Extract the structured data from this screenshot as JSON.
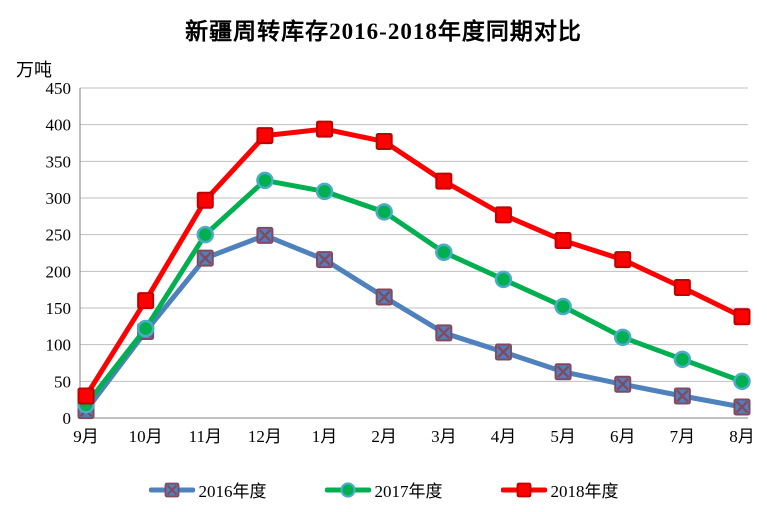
{
  "title": "新疆周转库存2016-2018年度同期对比",
  "unit_label": "万吨",
  "chart_data": {
    "type": "line",
    "categories": [
      "9月",
      "10月",
      "11月",
      "12月",
      "1月",
      "2月",
      "3月",
      "4月",
      "5月",
      "6月",
      "7月",
      "8月"
    ],
    "series": [
      {
        "name": "2016年度",
        "marker": "x-square",
        "color": "#4f81bd",
        "marker_fill": "#4f81bd",
        "marker_stroke": "#84495f",
        "values": [
          10,
          118,
          218,
          249,
          216,
          165,
          116,
          90,
          63,
          46,
          30,
          15
        ]
      },
      {
        "name": "2017年度",
        "marker": "circle",
        "color": "#00b050",
        "marker_fill": "#00b050",
        "marker_stroke": "#4bacc6",
        "values": [
          18,
          122,
          250,
          324,
          309,
          281,
          226,
          189,
          152,
          110,
          80,
          50
        ]
      },
      {
        "name": "2018年度",
        "marker": "square",
        "color": "#fe0000",
        "marker_fill": "#fe0000",
        "marker_stroke": "#c00000",
        "values": [
          30,
          160,
          297,
          385,
          394,
          377,
          323,
          277,
          242,
          216,
          178,
          138
        ]
      }
    ],
    "ylim": [
      0,
      450
    ],
    "yticks": [
      0,
      50,
      100,
      150,
      200,
      250,
      300,
      350,
      400,
      450
    ],
    "xlabel": "",
    "ylabel": "万吨",
    "grid": true,
    "legend_position": "bottom",
    "gridline_color": "#bfbfbf",
    "axis_color": "#808080"
  }
}
